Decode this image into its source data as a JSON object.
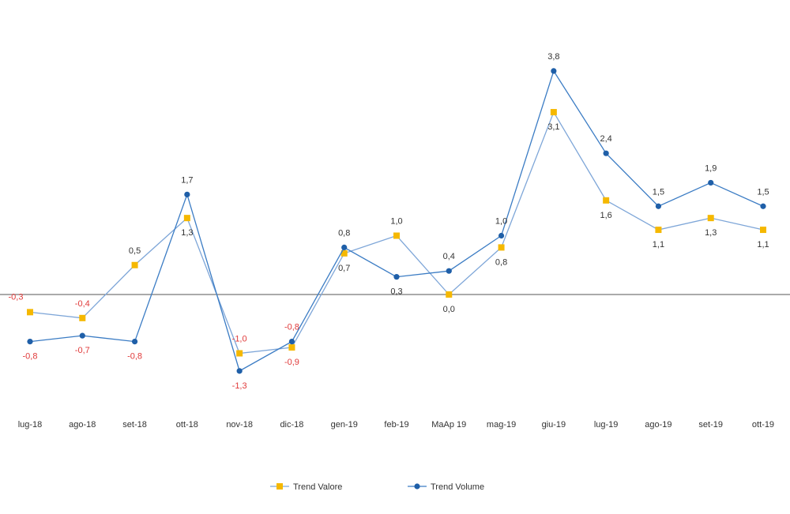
{
  "chart_data": {
    "type": "line",
    "title": "",
    "xlabel": "",
    "ylabel": "",
    "categories": [
      "lug-18",
      "ago-18",
      "set-18",
      "ott-18",
      "nov-18",
      "dic-18",
      "gen-19",
      "feb-19",
      "MaAp 19",
      "mag-19",
      "giu-19",
      "lug-19",
      "ago-19",
      "set-19",
      "ott-19"
    ],
    "ylim": [
      -2.6,
      4.1
    ],
    "grid": false,
    "legend_position": "bottom",
    "series": [
      {
        "name": "Trend Valore",
        "color": "#f5b800",
        "line_color": "#7ea6d8",
        "marker": "square",
        "values": [
          -0.3,
          -0.4,
          0.5,
          1.3,
          -1.0,
          -0.9,
          0.7,
          1.0,
          0.0,
          0.8,
          3.1,
          1.6,
          1.1,
          1.3,
          1.1
        ],
        "labels": [
          "-0,3",
          "-0,4",
          "0,5",
          "1,3",
          "-1,0",
          "-0,9",
          "0,7",
          "1,0",
          "0,0",
          "0,8",
          "3,1",
          "1,6",
          "1,1",
          "1,3",
          "1,1"
        ]
      },
      {
        "name": "Trend Volume",
        "color": "#1f5fa8",
        "line_color": "#3b7cc4",
        "marker": "circle",
        "values": [
          -0.8,
          -0.7,
          -0.8,
          1.7,
          -1.3,
          -0.8,
          0.8,
          0.3,
          0.4,
          1.0,
          3.8,
          2.4,
          1.5,
          1.9,
          1.5
        ],
        "labels": [
          "-0,8",
          "-0,7",
          "-0,8",
          "1,7",
          "-1,3",
          "-0,8",
          "0,8",
          "0,3",
          "0,4",
          "1,0",
          "3,8",
          "2,4",
          "1,5",
          "1,9",
          "1,5"
        ]
      }
    ],
    "negative_label_color": "#e03a3a",
    "positive_label_color": "#333333",
    "axis_color": "#555555"
  }
}
